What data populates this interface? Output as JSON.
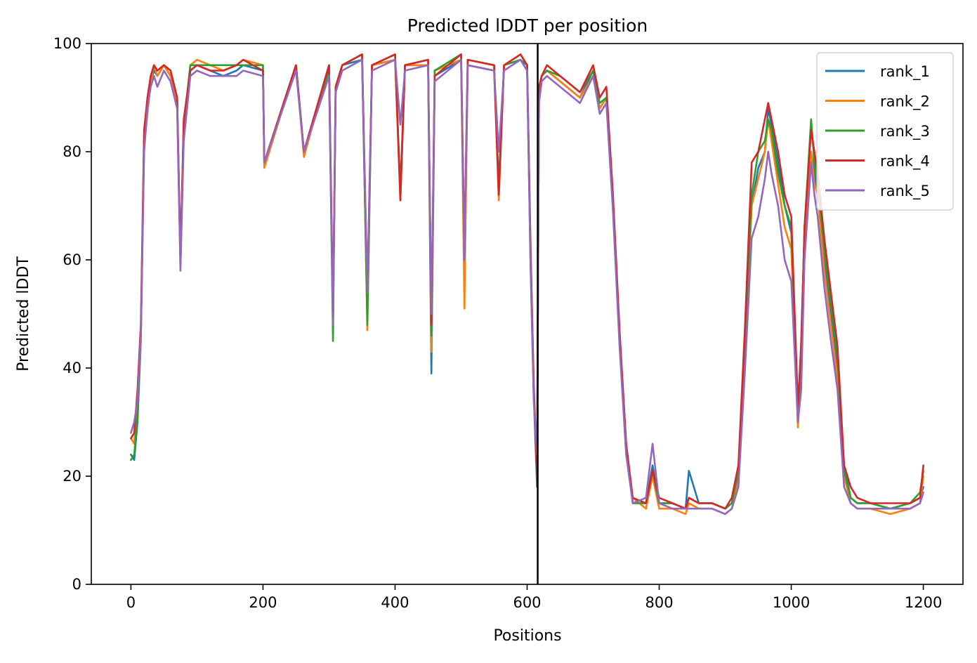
{
  "chart_data": {
    "type": "line",
    "title": "Predicted lDDT per position",
    "xlabel": "Positions",
    "ylabel": "Predicted lDDT",
    "xlim": [
      -60,
      1260
    ],
    "ylim": [
      0,
      100
    ],
    "xticks": [
      "0",
      "200",
      "400",
      "600",
      "800",
      "1000",
      "1200"
    ],
    "yticks": [
      "0",
      "20",
      "40",
      "60",
      "80",
      "100"
    ],
    "grid": false,
    "legend_position": "top-right",
    "chain_boundary_x": 616,
    "series": [
      {
        "name": "rank_1",
        "color": "#1f77b4",
        "x": [
          0,
          5,
          10,
          15,
          20,
          25,
          30,
          35,
          40,
          50,
          60,
          70,
          75,
          80,
          90,
          100,
          120,
          140,
          160,
          170,
          200,
          202,
          250,
          262,
          300,
          306,
          310,
          320,
          350,
          358,
          365,
          400,
          408,
          415,
          450,
          455,
          460,
          500,
          505,
          510,
          550,
          557,
          565,
          590,
          600,
          605,
          610,
          615,
          618,
          622,
          630,
          650,
          680,
          700,
          710,
          720,
          730,
          740,
          750,
          760,
          780,
          790,
          800,
          820,
          840,
          845,
          860,
          880,
          900,
          910,
          920,
          930,
          940,
          950,
          960,
          965,
          970,
          980,
          990,
          1000,
          1010,
          1015,
          1020,
          1030,
          1035,
          1040,
          1050,
          1060,
          1070,
          1080,
          1090,
          1100,
          1120,
          1150,
          1180,
          1195,
          1200
        ],
        "y": [
          24,
          23,
          30,
          45,
          82,
          88,
          93,
          95,
          94,
          96,
          94,
          90,
          60,
          85,
          95,
          96,
          95,
          94,
          95,
          96,
          95,
          78,
          96,
          80,
          96,
          49,
          92,
          96,
          97,
          50,
          96,
          97,
          73,
          96,
          96,
          39,
          94,
          97,
          56,
          96,
          95,
          74,
          96,
          97,
          95,
          60,
          35,
          18,
          90,
          94,
          95,
          93,
          90,
          95,
          88,
          90,
          70,
          45,
          25,
          15,
          15,
          22,
          15,
          15,
          14,
          21,
          15,
          15,
          14,
          15,
          20,
          45,
          70,
          77,
          80,
          88,
          85,
          78,
          70,
          65,
          31,
          45,
          65,
          80,
          76,
          72,
          60,
          50,
          40,
          22,
          16,
          15,
          15,
          14,
          15,
          16,
          18
        ]
      },
      {
        "name": "rank_2",
        "color": "#ff7f0e",
        "x": [
          0,
          5,
          10,
          15,
          20,
          25,
          30,
          35,
          40,
          50,
          60,
          70,
          75,
          80,
          90,
          100,
          120,
          140,
          160,
          170,
          200,
          202,
          250,
          262,
          300,
          306,
          310,
          320,
          350,
          358,
          365,
          400,
          408,
          415,
          450,
          455,
          460,
          500,
          505,
          510,
          550,
          557,
          565,
          590,
          600,
          605,
          610,
          615,
          618,
          622,
          630,
          650,
          680,
          700,
          710,
          720,
          730,
          740,
          750,
          760,
          780,
          790,
          800,
          820,
          840,
          845,
          860,
          880,
          900,
          910,
          920,
          930,
          940,
          950,
          960,
          965,
          970,
          980,
          990,
          1000,
          1010,
          1015,
          1020,
          1030,
          1035,
          1040,
          1050,
          1060,
          1070,
          1080,
          1090,
          1100,
          1120,
          1150,
          1180,
          1195,
          1200
        ],
        "y": [
          27,
          26,
          33,
          45,
          81,
          87,
          93,
          96,
          94,
          96,
          94,
          89,
          59,
          84,
          96,
          97,
          96,
          95,
          96,
          97,
          96,
          77,
          96,
          79,
          96,
          47,
          92,
          96,
          98,
          47,
          96,
          97,
          71,
          96,
          96,
          43,
          95,
          97,
          51,
          96,
          95,
          71,
          96,
          98,
          96,
          62,
          38,
          20,
          90,
          94,
          95,
          93,
          90,
          94,
          88,
          90,
          70,
          45,
          24,
          16,
          14,
          20,
          14,
          14,
          13,
          15,
          14,
          14,
          13,
          14,
          19,
          44,
          70,
          75,
          80,
          86,
          82,
          74,
          66,
          62,
          29,
          40,
          63,
          80,
          74,
          72,
          58,
          48,
          38,
          20,
          15,
          14,
          14,
          13,
          14,
          15,
          20
        ]
      },
      {
        "name": "rank_3",
        "color": "#2ca02c",
        "x": [
          0,
          5,
          10,
          15,
          20,
          25,
          30,
          35,
          40,
          50,
          60,
          70,
          75,
          80,
          90,
          100,
          120,
          140,
          160,
          170,
          200,
          202,
          250,
          262,
          300,
          306,
          310,
          320,
          350,
          358,
          365,
          400,
          408,
          415,
          450,
          455,
          460,
          500,
          505,
          510,
          550,
          557,
          565,
          590,
          600,
          605,
          610,
          615,
          618,
          622,
          630,
          650,
          680,
          700,
          710,
          720,
          730,
          740,
          750,
          760,
          780,
          790,
          800,
          820,
          840,
          845,
          860,
          880,
          900,
          910,
          920,
          930,
          940,
          950,
          960,
          965,
          970,
          980,
          990,
          1000,
          1010,
          1015,
          1020,
          1030,
          1035,
          1040,
          1050,
          1060,
          1070,
          1080,
          1090,
          1100,
          1120,
          1150,
          1180,
          1195,
          1200
        ],
        "y": [
          23,
          24,
          31,
          46,
          83,
          89,
          94,
          96,
          95,
          96,
          95,
          90,
          60,
          85,
          96,
          96,
          96,
          96,
          96,
          96,
          96,
          78,
          96,
          80,
          95,
          45,
          92,
          96,
          98,
          48,
          96,
          98,
          72,
          96,
          97,
          46,
          95,
          98,
          60,
          97,
          96,
          73,
          96,
          97,
          96,
          64,
          36,
          22,
          91,
          94,
          95,
          94,
          91,
          95,
          89,
          90,
          71,
          46,
          26,
          15,
          15,
          21,
          15,
          15,
          14,
          16,
          15,
          15,
          14,
          15,
          21,
          46,
          72,
          80,
          82,
          86,
          84,
          76,
          70,
          66,
          32,
          42,
          66,
          86,
          78,
          74,
          62,
          52,
          42,
          21,
          16,
          15,
          15,
          14,
          15,
          17,
          21
        ]
      },
      {
        "name": "rank_4",
        "color": "#d62728",
        "x": [
          0,
          5,
          10,
          15,
          20,
          25,
          30,
          35,
          40,
          50,
          60,
          70,
          75,
          80,
          90,
          100,
          120,
          140,
          160,
          170,
          200,
          202,
          250,
          262,
          300,
          306,
          310,
          320,
          350,
          358,
          365,
          400,
          408,
          415,
          450,
          455,
          460,
          500,
          505,
          510,
          550,
          557,
          565,
          590,
          600,
          605,
          610,
          615,
          618,
          622,
          630,
          650,
          680,
          700,
          710,
          720,
          730,
          740,
          750,
          760,
          780,
          790,
          800,
          820,
          840,
          845,
          860,
          880,
          900,
          910,
          920,
          930,
          940,
          950,
          960,
          965,
          970,
          980,
          990,
          1000,
          1010,
          1015,
          1020,
          1030,
          1035,
          1040,
          1050,
          1060,
          1070,
          1080,
          1090,
          1100,
          1120,
          1150,
          1180,
          1195,
          1200
        ],
        "y": [
          27,
          28,
          36,
          48,
          84,
          90,
          94,
          96,
          95,
          96,
          95,
          90,
          60,
          86,
          95,
          96,
          95,
          95,
          96,
          97,
          95,
          78,
          96,
          80,
          96,
          50,
          92,
          96,
          98,
          54,
          96,
          98,
          71,
          96,
          97,
          48,
          94,
          98,
          62,
          97,
          96,
          72,
          96,
          98,
          96,
          63,
          36,
          20,
          92,
          94,
          96,
          94,
          91,
          96,
          90,
          92,
          72,
          47,
          26,
          16,
          15,
          21,
          16,
          15,
          14,
          16,
          15,
          15,
          14,
          16,
          22,
          48,
          78,
          80,
          86,
          89,
          86,
          80,
          72,
          68,
          33,
          44,
          66,
          84,
          80,
          76,
          64,
          54,
          44,
          22,
          18,
          16,
          15,
          15,
          15,
          16,
          22
        ]
      },
      {
        "name": "rank_5",
        "color": "#9467bd",
        "x": [
          0,
          5,
          10,
          15,
          20,
          25,
          30,
          35,
          40,
          50,
          60,
          70,
          75,
          80,
          90,
          100,
          120,
          140,
          160,
          170,
          200,
          202,
          250,
          262,
          300,
          306,
          310,
          320,
          350,
          358,
          365,
          400,
          408,
          415,
          450,
          455,
          460,
          500,
          505,
          510,
          550,
          557,
          565,
          590,
          600,
          605,
          610,
          615,
          618,
          622,
          630,
          650,
          680,
          700,
          710,
          720,
          730,
          740,
          750,
          760,
          780,
          790,
          800,
          820,
          840,
          845,
          860,
          880,
          900,
          910,
          920,
          930,
          940,
          950,
          960,
          965,
          970,
          980,
          990,
          1000,
          1010,
          1015,
          1020,
          1030,
          1035,
          1040,
          1050,
          1060,
          1070,
          1080,
          1090,
          1100,
          1120,
          1150,
          1180,
          1195,
          1200
        ],
        "y": [
          28,
          30,
          34,
          46,
          80,
          88,
          92,
          94,
          92,
          95,
          93,
          88,
          58,
          82,
          94,
          95,
          94,
          94,
          94,
          95,
          94,
          78,
          95,
          80,
          94,
          48,
          91,
          95,
          97,
          54,
          95,
          97,
          85,
          95,
          96,
          50,
          93,
          97,
          60,
          96,
          95,
          80,
          95,
          97,
          95,
          60,
          34,
          24,
          89,
          93,
          94,
          92,
          89,
          94,
          87,
          89,
          69,
          44,
          24,
          15,
          16,
          26,
          15,
          14,
          14,
          14,
          14,
          14,
          13,
          14,
          18,
          40,
          64,
          68,
          75,
          80,
          76,
          70,
          60,
          56,
          30,
          36,
          60,
          78,
          72,
          68,
          55,
          45,
          36,
          18,
          15,
          14,
          14,
          14,
          14,
          15,
          17
        ]
      }
    ]
  }
}
